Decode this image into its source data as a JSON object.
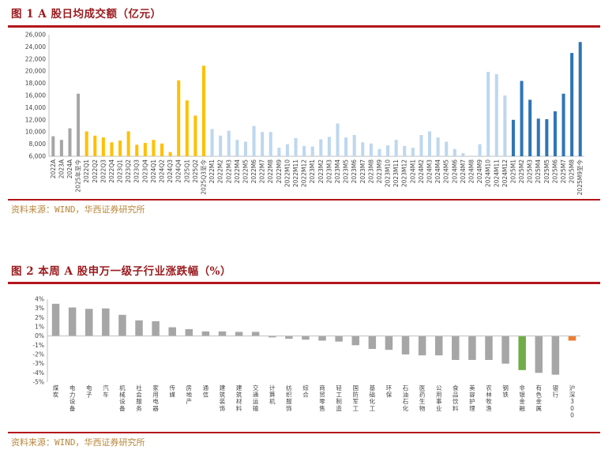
{
  "figure1": {
    "title": "图 1   A 股日均成交额（亿元）",
    "source": "资料来源：WIND，华西证券研究所"
  },
  "figure2": {
    "title": "图 2   本周 A 股申万一级子行业涨跌幅（%）",
    "source": "资料来源：WIND，华西证券研究所"
  },
  "colors": {
    "brand_red": "#b3161c",
    "gray": "#a6a6a6",
    "yellow": "#ffc000",
    "light_blue": "#bdd7ee",
    "blue": "#2e75b6",
    "green": "#70ad47",
    "orange": "#ed7d31"
  },
  "chart_data": [
    {
      "type": "bar",
      "ylim": [
        6000,
        26000
      ],
      "yticks": [
        "6,000",
        "8,000",
        "10,000",
        "12,000",
        "14,000",
        "16,000",
        "18,000",
        "20,000",
        "22,000",
        "24,000",
        "26,000"
      ],
      "categories": [
        "2022A",
        "2023A",
        "2024A",
        "2025年至今",
        "2022Q1",
        "2022Q2",
        "2022Q3",
        "2022Q4",
        "2023Q1",
        "2023Q2",
        "2023Q3",
        "2023Q4",
        "2024Q1",
        "2024Q2",
        "2024Q3",
        "2024Q4",
        "2025Q1",
        "2025Q2",
        "2025Q3至今",
        "2022M1",
        "2022M2",
        "2022M3",
        "2022M4",
        "2022M5",
        "2022M6",
        "2022M7",
        "2022M8",
        "2022M9",
        "2022M10",
        "2022M11",
        "2022M12",
        "2023M1",
        "2023M2",
        "2023M3",
        "2023M4",
        "2023M5",
        "2023M6",
        "2023M7",
        "2023M8",
        "2023M9",
        "2023M10",
        "2023M11",
        "2023M12",
        "2024M1",
        "2024M2",
        "2024M3",
        "2024M4",
        "2024M5",
        "2024M6",
        "2024M7",
        "2024M8",
        "2024M9",
        "2024M10",
        "2024M11",
        "2024M12",
        "2025M1",
        "2025M2",
        "2025M3",
        "2025M4",
        "2025M5",
        "2025M6",
        "2025M7",
        "2025M8",
        "2025M9至今"
      ],
      "values": [
        9300,
        8700,
        10600,
        16300,
        10100,
        9400,
        9100,
        8300,
        8600,
        10100,
        7900,
        8200,
        8700,
        8100,
        6700,
        18500,
        15200,
        12700,
        20900,
        10500,
        9400,
        10200,
        8700,
        8400,
        11000,
        10000,
        10000,
        7400,
        8000,
        9000,
        7700,
        7600,
        8800,
        9200,
        11400,
        9100,
        9500,
        8300,
        8100,
        7200,
        7800,
        8700,
        7700,
        7400,
        9500,
        10100,
        9100,
        8400,
        7200,
        6500,
        5900,
        8000,
        19900,
        19500,
        16000,
        12000,
        18400,
        15300,
        12200,
        12100,
        13400,
        16300,
        23000,
        24800
      ],
      "groups": [
        "gray",
        "gray",
        "gray",
        "gray",
        "yellow",
        "yellow",
        "yellow",
        "yellow",
        "yellow",
        "yellow",
        "yellow",
        "yellow",
        "yellow",
        "yellow",
        "yellow",
        "yellow",
        "yellow",
        "yellow",
        "yellow",
        "light_blue",
        "light_blue",
        "light_blue",
        "light_blue",
        "light_blue",
        "light_blue",
        "light_blue",
        "light_blue",
        "light_blue",
        "light_blue",
        "light_blue",
        "light_blue",
        "light_blue",
        "light_blue",
        "light_blue",
        "light_blue",
        "light_blue",
        "light_blue",
        "light_blue",
        "light_blue",
        "light_blue",
        "light_blue",
        "light_blue",
        "light_blue",
        "light_blue",
        "light_blue",
        "light_blue",
        "light_blue",
        "light_blue",
        "light_blue",
        "light_blue",
        "light_blue",
        "light_blue",
        "light_blue",
        "light_blue",
        "light_blue",
        "blue",
        "blue",
        "blue",
        "blue",
        "blue",
        "blue",
        "blue",
        "blue",
        "blue"
      ],
      "xlabel": "",
      "ylabel": ""
    },
    {
      "type": "bar",
      "ylim": [
        -5,
        4
      ],
      "yticks": [
        "-5%",
        "-4%",
        "-3%",
        "-2%",
        "-1%",
        "0%",
        "1%",
        "2%",
        "3%",
        "4%"
      ],
      "categories": [
        "煤炭",
        "电力设备",
        "电子",
        "汽车",
        "机械设备",
        "社会服务",
        "家用电器",
        "传媒",
        "房地产",
        "通信",
        "建筑装饰",
        "建筑材料",
        "交通运输",
        "计算机",
        "纺织服饰",
        "综合",
        "商贸零售",
        "轻工制造",
        "国防军工",
        "基础化工",
        "环保",
        "石油石化",
        "医药生物",
        "公用事业",
        "食品饮料",
        "美容护理",
        "农林牧渔",
        "钢铁",
        "非银金融",
        "有色金属",
        "银行",
        "沪深300"
      ],
      "values": [
        3.5,
        3.1,
        2.95,
        3.0,
        2.3,
        1.7,
        1.6,
        0.95,
        0.75,
        0.5,
        0.5,
        0.45,
        0.45,
        -0.15,
        -0.3,
        -0.4,
        -0.5,
        -0.6,
        -1.0,
        -1.4,
        -1.5,
        -2.0,
        -2.1,
        -2.1,
        -2.6,
        -2.6,
        -2.6,
        -3.0,
        -3.7,
        -4.0,
        -4.2,
        -0.5
      ],
      "groups": [
        "gray",
        "gray",
        "gray",
        "gray",
        "gray",
        "gray",
        "gray",
        "gray",
        "gray",
        "gray",
        "gray",
        "gray",
        "gray",
        "gray",
        "gray",
        "gray",
        "gray",
        "gray",
        "gray",
        "gray",
        "gray",
        "gray",
        "gray",
        "gray",
        "gray",
        "gray",
        "gray",
        "gray",
        "green",
        "gray",
        "gray",
        "orange"
      ],
      "xlabel": "",
      "ylabel": ""
    }
  ]
}
